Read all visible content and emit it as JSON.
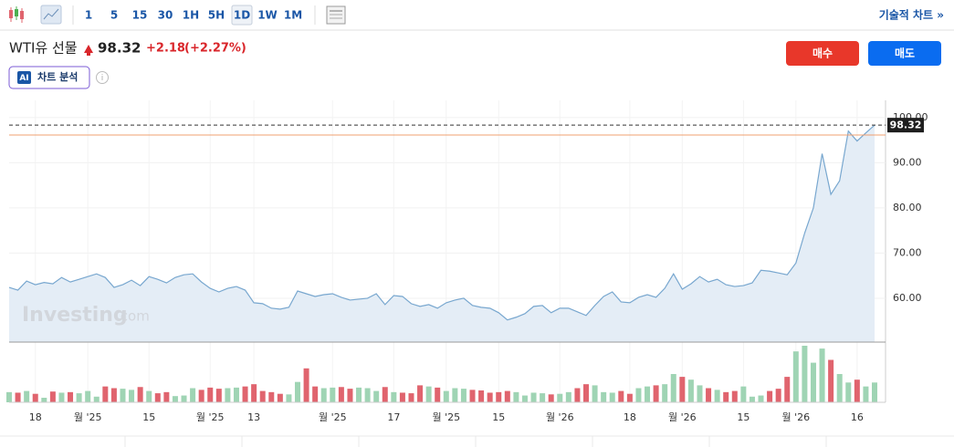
{
  "toolbar": {
    "intervals": [
      "1",
      "5",
      "15",
      "30",
      "1H",
      "5H",
      "1D",
      "1W",
      "1M"
    ],
    "active_interval": "1D",
    "technical_chart": "기술적 차트 »"
  },
  "header": {
    "name": "WTI유 선물",
    "price": "98.32",
    "change": "+2.18",
    "change_pct": "(+2.27%)",
    "buy": "매수",
    "sell": "매도",
    "ai_badge": "AI",
    "ai_label": "차트 분석"
  },
  "watermark": {
    "brand": "Investing",
    "suffix": ".com"
  },
  "chart_data": {
    "type": "area",
    "categories": [
      null,
      null,
      null,
      "18",
      null,
      null,
      null,
      null,
      null,
      "월 '25",
      null,
      null,
      null,
      null,
      null,
      null,
      "15",
      null,
      null,
      null,
      null,
      null,
      null,
      "월 '25",
      null,
      null,
      null,
      null,
      "13",
      null,
      null,
      null,
      null,
      null,
      null,
      null,
      null,
      "월 '25",
      null,
      null,
      null,
      null,
      null,
      null,
      "17",
      null,
      null,
      null,
      null,
      null,
      "월 '25",
      null,
      null,
      null,
      null,
      null,
      "15",
      null,
      null,
      null,
      null,
      null,
      null,
      "월 '26",
      null,
      null,
      null,
      null,
      null,
      null,
      null,
      "18",
      null,
      null,
      null,
      null,
      null,
      "월 '26",
      null,
      null,
      null,
      null,
      null,
      null,
      "15",
      null,
      null,
      null,
      null,
      null,
      "월 '26",
      null,
      null,
      null,
      null,
      null,
      null,
      "16",
      null,
      null
    ],
    "values": [
      62.4,
      61.8,
      63.8,
      63.0,
      63.5,
      63.2,
      64.6,
      63.6,
      64.2,
      64.8,
      65.4,
      64.6,
      62.4,
      63.0,
      64.0,
      62.8,
      64.8,
      64.2,
      63.4,
      64.6,
      65.2,
      65.4,
      63.6,
      62.2,
      61.4,
      62.2,
      62.6,
      61.8,
      59.0,
      58.8,
      57.8,
      57.6,
      58.0,
      61.6,
      61.0,
      60.4,
      60.8,
      61.0,
      60.2,
      59.6,
      59.8,
      60.0,
      61.0,
      58.6,
      60.6,
      60.4,
      58.8,
      58.2,
      58.6,
      57.8,
      59.0,
      59.6,
      60.0,
      58.4,
      58.0,
      57.8,
      56.8,
      55.2,
      55.8,
      56.6,
      58.2,
      58.4,
      56.8,
      57.8,
      57.8,
      57.0,
      56.2,
      58.4,
      60.4,
      61.4,
      59.2,
      59.0,
      60.2,
      60.8,
      60.2,
      62.2,
      65.4,
      62.0,
      63.2,
      64.8,
      63.6,
      64.2,
      63.0,
      62.6,
      62.8,
      63.4,
      66.2,
      66.0,
      65.6,
      65.2,
      67.8,
      74.4,
      80.0,
      92.0,
      83.0,
      86.0,
      97.0,
      94.8,
      96.6,
      98.32
    ],
    "volume": [
      18,
      17,
      20,
      15,
      8,
      19,
      17,
      18,
      16,
      20,
      10,
      28,
      25,
      24,
      22,
      27,
      20,
      16,
      18,
      11,
      12,
      25,
      22,
      26,
      24,
      25,
      26,
      28,
      32,
      20,
      18,
      15,
      14,
      36,
      60,
      28,
      25,
      26,
      27,
      24,
      26,
      25,
      20,
      27,
      18,
      17,
      16,
      30,
      28,
      26,
      20,
      25,
      24,
      22,
      21,
      17,
      18,
      20,
      18,
      12,
      17,
      16,
      14,
      15,
      18,
      25,
      32,
      30,
      18,
      17,
      20,
      15,
      25,
      28,
      30,
      32,
      50,
      45,
      40,
      30,
      25,
      22,
      18,
      20,
      28,
      10,
      12,
      20,
      24,
      45,
      90,
      100,
      70,
      95,
      75,
      50,
      35,
      40,
      28,
      35
    ],
    "color": "#78a7cf",
    "area_color": "#e4edf6",
    "up_color": "#9fd4b4",
    "down_color": "#e0646e",
    "reference_line": 96.14,
    "reference_color": "#f0a070",
    "ylim": [
      50.3,
      103.8
    ],
    "yticks": [
      {
        "value": 60,
        "label": "60.00"
      },
      {
        "value": 70,
        "label": "70.00"
      },
      {
        "value": 80,
        "label": "80.00"
      },
      {
        "value": 90,
        "label": "90.00"
      },
      {
        "value": 100,
        "label": "100.00"
      }
    ],
    "grid": true
  }
}
